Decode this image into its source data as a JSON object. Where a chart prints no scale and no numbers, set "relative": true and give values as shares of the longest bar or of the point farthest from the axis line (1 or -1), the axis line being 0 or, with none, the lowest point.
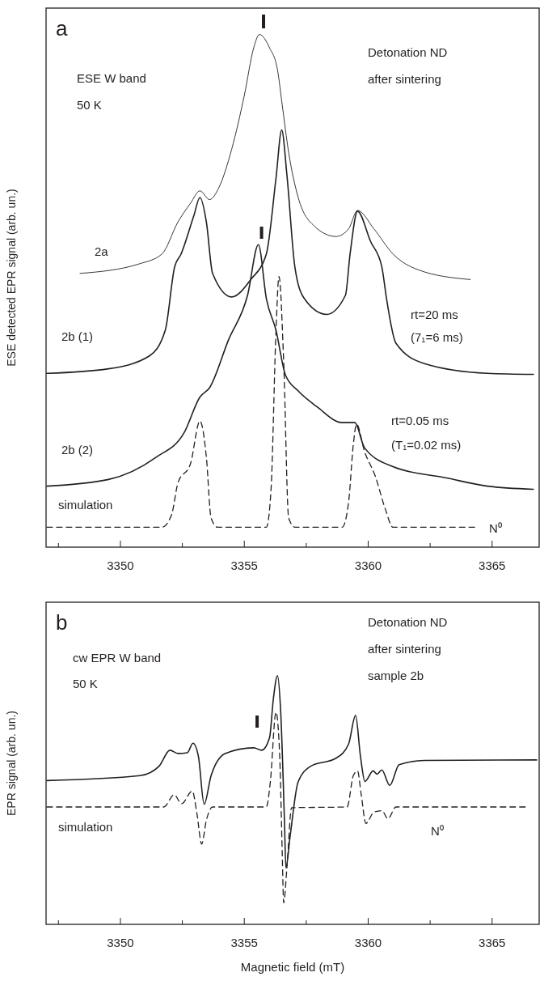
{
  "chart_data": [
    {
      "type": "line",
      "title": "a",
      "ylabel": "ESE detected EPR signal (arb. un.)",
      "relative": true,
      "xlim": [
        3347,
        3366.9
      ],
      "xticks": [
        {
          "value": 3347.5,
          "label": null
        },
        3350,
        {
          "value": 3352.5,
          "label": null
        },
        3355,
        {
          "value": 3357.5,
          "label": null
        },
        3360,
        {
          "value": 3362.5,
          "label": null
        },
        3365
      ],
      "annotations": [
        "ESE  W band",
        "50 K",
        "Detonation ND",
        "after sintering",
        "rt=20 ms",
        "(7₁=6 ms)",
        "rt=0.05 ms",
        "(T₁=0.02 ms)",
        "N⁰"
      ],
      "series": [
        {
          "name": "2a",
          "color": "#231f20",
          "line_style": "solid",
          "x": [
            3348.37,
            3350.79,
            3351.68,
            3352.32,
            3352.83,
            3353.21,
            3353.6,
            3353.98,
            3354.49,
            3355.0,
            3355.38,
            3355.61,
            3356.02,
            3356.34,
            3356.53,
            3356.79,
            3357.17,
            3357.81,
            3358.7,
            3359.21,
            3359.57,
            3360.23,
            3361.0,
            3362.02,
            3364.12
          ],
          "values": [
            0.534,
            0.553,
            0.572,
            0.634,
            0.671,
            0.695,
            0.678,
            0.702,
            0.776,
            0.881,
            0.974,
            1.0,
            0.974,
            0.931,
            0.863,
            0.77,
            0.683,
            0.627,
            0.606,
            0.621,
            0.657,
            0.621,
            0.572,
            0.541,
            0.522
          ]
        },
        {
          "name": "2b (1)",
          "color": "#231f20",
          "line_style": "solid",
          "x": [
            3347.03,
            3349.52,
            3351.17,
            3351.81,
            3352.19,
            3352.45,
            3352.96,
            3353.21,
            3353.47,
            3353.72,
            3354.49,
            3355.26,
            3355.89,
            3356.28,
            3356.51,
            3356.72,
            3357.04,
            3357.42,
            3358.32,
            3359.08,
            3359.27,
            3359.57,
            3360.1,
            3360.55,
            3360.74,
            3361.12,
            3362.27,
            3364.82,
            3366.67
          ],
          "values": [
            0.339,
            0.348,
            0.373,
            0.423,
            0.547,
            0.572,
            0.646,
            0.682,
            0.634,
            0.534,
            0.488,
            0.522,
            0.572,
            0.72,
            0.814,
            0.726,
            0.547,
            0.485,
            0.454,
            0.491,
            0.572,
            0.655,
            0.596,
            0.547,
            0.485,
            0.398,
            0.358,
            0.339,
            0.337
          ]
        },
        {
          "name": "2b (2)",
          "color": "#231f20",
          "line_style": "solid",
          "x": [
            3347.03,
            3349.52,
            3351.43,
            3352.58,
            3353.21,
            3353.6,
            3354.36,
            3355.13,
            3355.57,
            3355.89,
            3356.28,
            3356.66,
            3357.17,
            3357.93,
            3358.95,
            3359.46,
            3359.85,
            3361.0,
            3363.16,
            3364.82,
            3366.67
          ],
          "values": [
            0.119,
            0.132,
            0.175,
            0.224,
            0.293,
            0.311,
            0.404,
            0.491,
            0.59,
            0.485,
            0.423,
            0.336,
            0.305,
            0.274,
            0.243,
            0.243,
            0.194,
            0.157,
            0.135,
            0.119,
            0.113
          ]
        },
        {
          "name": "simulation",
          "color": "#231f20",
          "line_style": "dashed",
          "x": [
            3347.03,
            3351.68,
            3352.07,
            3352.32,
            3352.83,
            3353.21,
            3353.47,
            3353.66,
            3353.92,
            3355.89,
            3356.08,
            3356.28,
            3356.4,
            3356.59,
            3356.79,
            3357.04,
            3358.95,
            3359.21,
            3359.4,
            3359.53,
            3359.85,
            3360.29,
            3360.68,
            3361.0,
            3364.31
          ],
          "values": [
            0.039,
            0.039,
            0.064,
            0.125,
            0.163,
            0.246,
            0.175,
            0.057,
            0.039,
            0.039,
            0.113,
            0.423,
            0.528,
            0.361,
            0.057,
            0.039,
            0.039,
            0.088,
            0.2,
            0.24,
            0.187,
            0.138,
            0.076,
            0.039,
            0.039
          ]
        }
      ]
    },
    {
      "type": "line",
      "title": "b",
      "ylabel": "EPR signal (arb. un.)",
      "xlabel": "Magnetic field (mT)",
      "relative": true,
      "xlim": [
        3347,
        3366.9
      ],
      "xticks": [
        {
          "value": 3347.5,
          "label": null
        },
        3350,
        {
          "value": 3352.5,
          "label": null
        },
        3355,
        {
          "value": 3357.5,
          "label": null
        },
        3360,
        {
          "value": 3362.5,
          "label": null
        },
        3365
      ],
      "annotations": [
        "cw EPR  W band",
        "50 K",
        "Detonation ND",
        "after sintering",
        "sample 2b",
        "N⁰"
      ],
      "series": [
        {
          "color": "#231f20",
          "line_style": "solid",
          "x": [
            3347.03,
            3350.79,
            3351.56,
            3352.0,
            3352.32,
            3352.7,
            3352.93,
            3353.15,
            3353.38,
            3353.66,
            3354.23,
            3355.38,
            3355.7,
            3356.02,
            3356.17,
            3356.34,
            3356.47,
            3356.62,
            3356.68,
            3356.85,
            3357.17,
            3357.68,
            3358.7,
            3359.21,
            3359.49,
            3359.69,
            3359.87,
            3360.2,
            3360.36,
            3360.55,
            3360.87,
            3361.25,
            3362.27,
            3366.8
          ],
          "values": [
            0.578,
            0.598,
            0.636,
            0.7,
            0.687,
            0.69,
            0.728,
            0.674,
            0.483,
            0.598,
            0.687,
            0.71,
            0.7,
            0.751,
            0.904,
            1.0,
            0.853,
            0.419,
            0.227,
            0.355,
            0.572,
            0.636,
            0.668,
            0.725,
            0.84,
            0.674,
            0.575,
            0.617,
            0.604,
            0.621,
            0.559,
            0.642,
            0.659,
            0.661
          ]
        },
        {
          "name": "simulation",
          "color": "#231f20",
          "line_style": "dashed",
          "x": [
            3347.03,
            3351.75,
            3352.17,
            3352.47,
            3352.9,
            3353.09,
            3353.28,
            3353.47,
            3353.72,
            3355.89,
            3356.05,
            3356.28,
            3356.43,
            3356.53,
            3356.59,
            3356.72,
            3356.91,
            3359.15,
            3359.4,
            3359.57,
            3359.72,
            3359.91,
            3360.23,
            3360.55,
            3360.8,
            3361.12,
            3366.42
          ],
          "values": [
            0.472,
            0.472,
            0.521,
            0.485,
            0.536,
            0.444,
            0.323,
            0.419,
            0.472,
            0.472,
            0.572,
            0.853,
            0.674,
            0.291,
            0.087,
            0.227,
            0.469,
            0.472,
            0.598,
            0.617,
            0.521,
            0.406,
            0.451,
            0.457,
            0.425,
            0.472,
            0.472
          ]
        }
      ]
    }
  ]
}
